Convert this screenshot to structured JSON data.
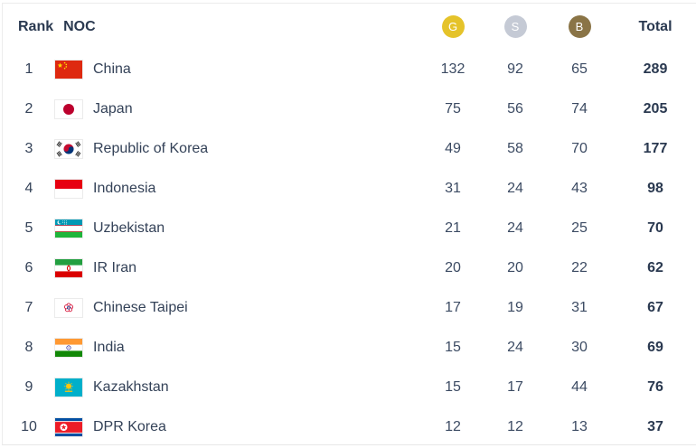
{
  "table": {
    "headers": {
      "rank": "Rank",
      "noc": "NOC",
      "gold": "G",
      "silver": "S",
      "bronze": "B",
      "total": "Total"
    },
    "medal_colors": {
      "gold": "#e5c32a",
      "silver": "#c5cad5",
      "bronze": "#8a7446"
    },
    "rows": [
      {
        "rank": "1",
        "noc": "China",
        "flag": "cn",
        "gold": "132",
        "silver": "92",
        "bronze": "65",
        "total": "289"
      },
      {
        "rank": "2",
        "noc": "Japan",
        "flag": "jp",
        "gold": "75",
        "silver": "56",
        "bronze": "74",
        "total": "205"
      },
      {
        "rank": "3",
        "noc": "Republic of Korea",
        "flag": "kr",
        "gold": "49",
        "silver": "58",
        "bronze": "70",
        "total": "177"
      },
      {
        "rank": "4",
        "noc": "Indonesia",
        "flag": "id",
        "gold": "31",
        "silver": "24",
        "bronze": "43",
        "total": "98"
      },
      {
        "rank": "5",
        "noc": "Uzbekistan",
        "flag": "uz",
        "gold": "21",
        "silver": "24",
        "bronze": "25",
        "total": "70"
      },
      {
        "rank": "6",
        "noc": "IR Iran",
        "flag": "ir",
        "gold": "20",
        "silver": "20",
        "bronze": "22",
        "total": "62"
      },
      {
        "rank": "7",
        "noc": "Chinese Taipei",
        "flag": "tw",
        "gold": "17",
        "silver": "19",
        "bronze": "31",
        "total": "67"
      },
      {
        "rank": "8",
        "noc": "India",
        "flag": "in",
        "gold": "15",
        "silver": "24",
        "bronze": "30",
        "total": "69"
      },
      {
        "rank": "9",
        "noc": "Kazakhstan",
        "flag": "kz",
        "gold": "15",
        "silver": "17",
        "bronze": "44",
        "total": "76"
      },
      {
        "rank": "10",
        "noc": "DPR Korea",
        "flag": "kp",
        "gold": "12",
        "silver": "12",
        "bronze": "13",
        "total": "37"
      }
    ]
  }
}
